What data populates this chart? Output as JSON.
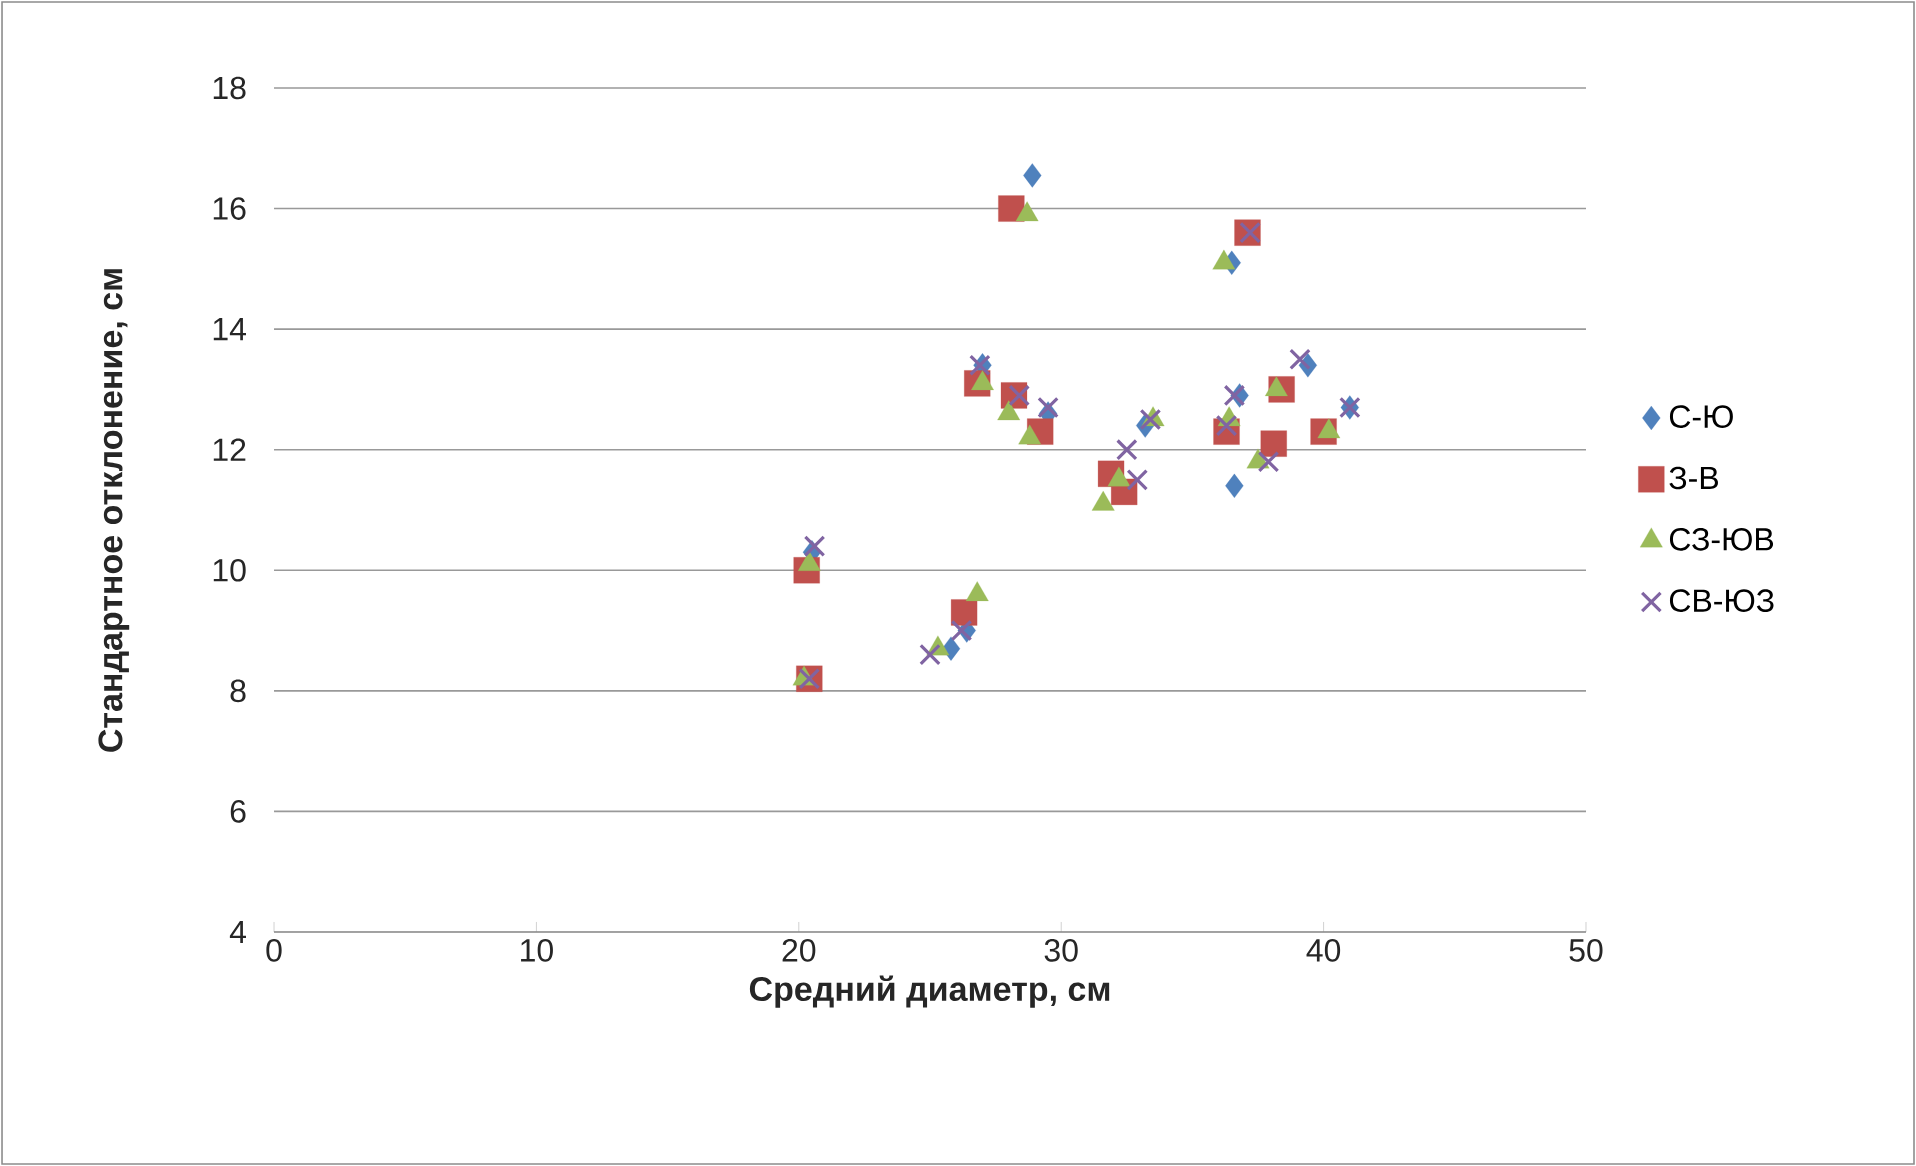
{
  "chart_data": {
    "type": "scatter",
    "xlabel": "Средний диаметр, см",
    "ylabel": "Стандартное отклонение, см",
    "xlim": [
      0,
      50
    ],
    "ylim": [
      4,
      18
    ],
    "xticks": [
      0,
      10,
      20,
      30,
      40,
      50
    ],
    "yticks": [
      4,
      6,
      8,
      10,
      12,
      14,
      16,
      18
    ],
    "grid": "y",
    "legend": "right",
    "series": [
      {
        "name": "С-Ю",
        "color": "#4f81bd",
        "marker": "diamond",
        "x": [
          20.5,
          25.8,
          26.4,
          27.0,
          28.9,
          29.5,
          33.2,
          36.5,
          36.6,
          36.8,
          39.4,
          41.0
        ],
        "values": [
          10.3,
          8.7,
          9.0,
          13.4,
          16.55,
          12.6,
          12.4,
          15.1,
          11.4,
          12.9,
          13.4,
          12.7
        ]
      },
      {
        "name": "З-В",
        "color": "#c0504d",
        "marker": "square",
        "x": [
          20.4,
          20.3,
          26.3,
          26.8,
          28.1,
          28.2,
          29.2,
          31.9,
          32.4,
          36.3,
          37.1,
          38.1,
          38.4,
          40.0
        ],
        "values": [
          8.2,
          10.0,
          9.3,
          13.1,
          16.0,
          12.9,
          12.3,
          11.6,
          11.3,
          12.3,
          15.6,
          12.1,
          13.0,
          12.3
        ]
      },
      {
        "name": "СЗ-ЮВ",
        "color": "#9bbb59",
        "marker": "triangle",
        "x": [
          20.2,
          20.4,
          25.3,
          26.8,
          27.0,
          28.0,
          28.7,
          28.8,
          31.6,
          32.2,
          33.5,
          36.2,
          36.4,
          37.5,
          38.2,
          40.2
        ],
        "values": [
          8.2,
          10.1,
          8.7,
          9.6,
          13.1,
          12.6,
          15.9,
          12.2,
          11.1,
          11.5,
          12.5,
          15.1,
          12.5,
          11.8,
          13.0,
          12.3
        ]
      },
      {
        "name": "СВ-ЮЗ",
        "color": "#8064a2",
        "marker": "cross",
        "x": [
          20.6,
          20.4,
          25.0,
          26.2,
          26.9,
          28.4,
          29.5,
          32.5,
          32.9,
          33.4,
          36.3,
          36.6,
          37.2,
          37.9,
          39.1,
          41.0
        ],
        "values": [
          10.4,
          8.2,
          8.6,
          9.0,
          13.4,
          12.9,
          12.7,
          12.0,
          11.5,
          12.5,
          12.4,
          12.9,
          15.6,
          11.8,
          13.5,
          12.7
        ]
      }
    ]
  }
}
